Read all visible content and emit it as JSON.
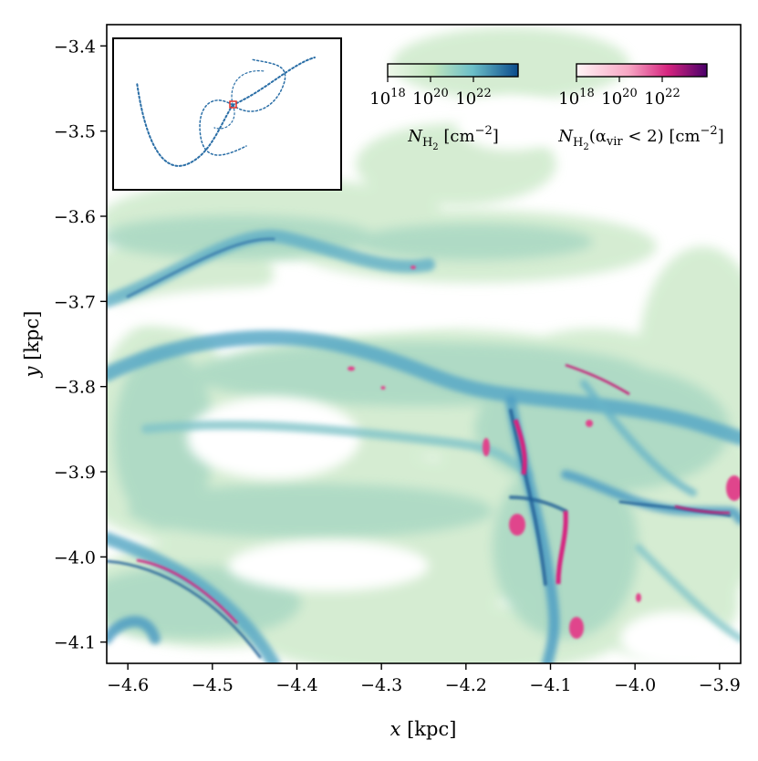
{
  "chart_data": {
    "type": "heatmap",
    "title": "",
    "xlabel": "x [kpc]",
    "ylabel": "y [kpc]",
    "xlim": [
      -4.625,
      -3.875
    ],
    "ylim": [
      -4.125,
      -3.375
    ],
    "xticks": [
      -4.6,
      -4.5,
      -4.4,
      -4.3,
      -4.2,
      -4.1,
      -4.0,
      -3.9
    ],
    "xtick_labels": [
      "−4.6",
      "−4.5",
      "−4.4",
      "−4.3",
      "−4.2",
      "−4.1",
      "−4.0",
      "−3.9"
    ],
    "yticks": [
      -3.4,
      -3.5,
      -3.6,
      -3.7,
      -3.8,
      -3.9,
      -4.0,
      -4.1
    ],
    "ytick_labels": [
      "−3.4",
      "−3.5",
      "−3.6",
      "−3.7",
      "−3.8",
      "−3.9",
      "−4.0",
      "−4.1"
    ],
    "colorbars": [
      {
        "quantity": "N_H2",
        "label_main": "N",
        "label_sub": "H",
        "label_subsub": "2",
        "label_rest": " [cm",
        "label_exp": "−2",
        "label_close": "]",
        "colormap": "GnBu",
        "colors": [
          "#e6f5e1",
          "#7fcdbb",
          "#0a4b8c"
        ],
        "ticks": [
          {
            "base": "10",
            "exp": "18"
          },
          {
            "base": "10",
            "exp": "20"
          },
          {
            "base": "10",
            "exp": "22"
          }
        ]
      },
      {
        "quantity": "N_H2 (alpha_vir < 2)",
        "label_main": "N",
        "label_sub": "H",
        "label_subsub": "2",
        "label_paren_open": "(α",
        "label_paren_sub": "vir",
        "label_paren_rest": " < 2) [cm",
        "label_exp": "−2",
        "label_close": "]",
        "colormap": "RdPu",
        "colors": [
          "#fff0f3",
          "#e7298a",
          "#3f007d"
        ],
        "ticks": [
          {
            "base": "10",
            "exp": "18"
          },
          {
            "base": "10",
            "exp": "20"
          },
          {
            "base": "10",
            "exp": "22"
          }
        ]
      }
    ],
    "inset": {
      "description": "full-galaxy spiral overview",
      "highlight_box_color": "#e0302a"
    },
    "colors": {
      "low_density": "#d9efd6",
      "mid_density": "#7fbfc4",
      "high_density": "#1f5f96",
      "bound_gas": "#e0458c"
    }
  }
}
